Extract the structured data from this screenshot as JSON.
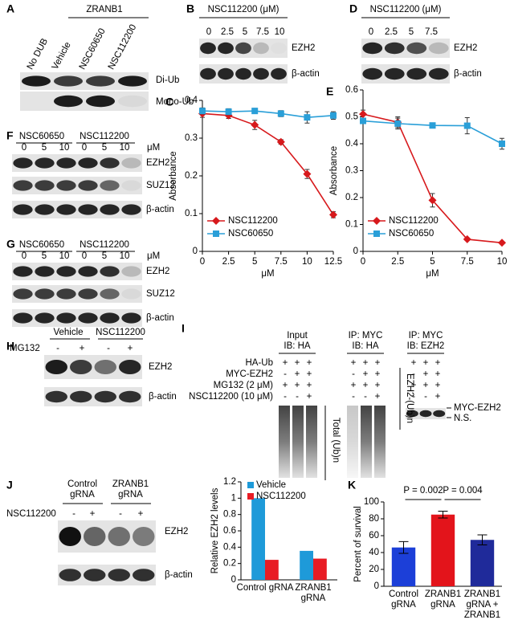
{
  "panels": {
    "A": {
      "label": "A",
      "group": "ZRANB1",
      "lanes": [
        "No DUB",
        "Vehicle",
        "NSC60650",
        "NSC112200"
      ],
      "bands": [
        "Di-Ub",
        "Mono-Ub"
      ]
    },
    "B": {
      "label": "B",
      "header": "NSC112200 (μM)",
      "doses": [
        "0",
        "2.5",
        "5",
        "7.5",
        "10"
      ],
      "bands": [
        "EZH2",
        "β-actin"
      ]
    },
    "D": {
      "label": "D",
      "header": "NSC112200 (μM)",
      "doses": [
        "0",
        "2.5",
        "5",
        "7.5"
      ],
      "bands": [
        "EZH2",
        "β-actin"
      ]
    },
    "F": {
      "label": "F",
      "groups": [
        "NSC60650",
        "NSC112200"
      ],
      "unit": "μM",
      "doses": [
        "0",
        "5",
        "10",
        "0",
        "5",
        "10"
      ],
      "bands": [
        "EZH2",
        "SUZ12",
        "β-actin"
      ]
    },
    "G": {
      "label": "G",
      "groups": [
        "NSC60650",
        "NSC112200"
      ],
      "unit": "μM",
      "doses": [
        "0",
        "5",
        "10",
        "0",
        "5",
        "10"
      ],
      "bands": [
        "EZH2",
        "SUZ12",
        "β-actin"
      ]
    },
    "H": {
      "label": "H",
      "groups": [
        "Vehicle",
        "NSC112200"
      ],
      "row": "MG132",
      "signs": [
        "-",
        "+",
        "-",
        "+"
      ],
      "bands": [
        "EZH2",
        "β-actin"
      ]
    },
    "I": {
      "label": "I",
      "headers": [
        [
          "Input",
          "IB: HA"
        ],
        [
          "IP: MYC",
          "IB: HA"
        ],
        [
          "IP: MYC",
          "IB: EZH2"
        ]
      ],
      "rows": [
        {
          "name": "HA-Ub",
          "signs": [
            "+",
            "+",
            "+",
            "+",
            "+",
            "+",
            "+",
            "+",
            "+"
          ]
        },
        {
          "name": "MYC-EZH2",
          "signs": [
            "-",
            "+",
            "+",
            "-",
            "+",
            "+",
            "-",
            "+",
            "+"
          ]
        },
        {
          "name": "MG132 (2 μM)",
          "signs": [
            "+",
            "+",
            "+",
            "+",
            "+",
            "+",
            "+",
            "+",
            "+"
          ]
        },
        {
          "name": "NSC112200 (10 μM)",
          "signs": [
            "-",
            "-",
            "+",
            "-",
            "-",
            "+",
            "-",
            "-",
            "+"
          ]
        }
      ],
      "side_labels": [
        "Total (Ub)n",
        "EZH2-(Ub)n",
        "MYC-EZH2",
        "N.S."
      ]
    },
    "J": {
      "label": "J",
      "groups": [
        "Control gRNA",
        "ZRANB1 gRNA"
      ],
      "row": "NSC112200",
      "signs": [
        "-",
        "+",
        "-",
        "+"
      ],
      "bands": [
        "EZH2",
        "β-actin"
      ]
    }
  },
  "chart_data": [
    {
      "type": "line",
      "panel": "C",
      "x_label": "μM",
      "y_label": "Absorbance",
      "x": [
        0,
        2.5,
        5,
        7.5,
        10,
        12.5
      ],
      "xlim": [
        0,
        12.5
      ],
      "xticks": [
        0,
        2.5,
        5,
        7.5,
        10,
        12.5
      ],
      "ylim": [
        0,
        0.4
      ],
      "yticks": [
        0,
        0.1,
        0.2,
        0.3,
        0.4
      ],
      "legend": "lower left",
      "series": [
        {
          "name": "NSC112200",
          "color": "#d7191c",
          "marker": "diamond",
          "values": [
            0.365,
            0.36,
            0.335,
            0.29,
            0.205,
            0.097
          ],
          "errors": [
            0.01,
            0.008,
            0.012,
            0.006,
            0.012,
            0.008
          ]
        },
        {
          "name": "NSC60650",
          "color": "#2a9fd8",
          "marker": "square",
          "values": [
            0.372,
            0.37,
            0.372,
            0.365,
            0.355,
            0.36
          ],
          "errors": [
            0.008,
            0.008,
            0.007,
            0.008,
            0.015,
            0.01
          ]
        }
      ]
    },
    {
      "type": "line",
      "panel": "E",
      "x_label": "μM",
      "y_label": "Absorbance",
      "x": [
        0,
        2.5,
        5,
        7.5,
        10
      ],
      "xlim": [
        0,
        10
      ],
      "xticks": [
        0,
        2.5,
        5,
        7.5,
        10
      ],
      "ylim": [
        0,
        0.6
      ],
      "yticks": [
        0,
        0.1,
        0.2,
        0.3,
        0.4,
        0.5,
        0.6
      ],
      "legend": "lower left",
      "series": [
        {
          "name": "NSC112200",
          "color": "#d7191c",
          "marker": "diamond",
          "values": [
            0.51,
            0.48,
            0.19,
            0.045,
            0.032
          ],
          "errors": [
            0.015,
            0.02,
            0.025,
            0.004,
            0.004
          ]
        },
        {
          "name": "NSC60650",
          "color": "#2a9fd8",
          "marker": "square",
          "values": [
            0.485,
            0.475,
            0.468,
            0.467,
            0.4
          ],
          "errors": [
            0.01,
            0.02,
            0.005,
            0.03,
            0.02
          ]
        }
      ]
    },
    {
      "type": "bar",
      "y_label": "Relative EZH2 levels",
      "categories": [
        "Control gRNA",
        "ZRANB1 gRNA"
      ],
      "ylim": [
        0,
        1.2
      ],
      "yticks": [
        0,
        0.2,
        0.4,
        0.6,
        0.8,
        1,
        1.2
      ],
      "legend": "upper left",
      "series": [
        {
          "name": "Vehicle",
          "color": "#1e9ad9",
          "values": [
            1,
            0.355
          ]
        },
        {
          "name": "NSC112200",
          "color": "#e81c24",
          "values": [
            0.245,
            0.26
          ]
        }
      ]
    },
    {
      "type": "bar",
      "panel": "K",
      "y_label": "Percent of survival",
      "categories": [
        "Control gRNA",
        "ZRANB1 gRNA",
        "ZRANB1 gRNA + ZRANB1"
      ],
      "ylim": [
        0,
        100
      ],
      "yticks": [
        0,
        20,
        40,
        60,
        80,
        100
      ],
      "values": [
        46,
        85,
        55
      ],
      "errors": [
        7,
        4,
        6
      ],
      "colors": [
        "#1c3fd8",
        "#e3141b",
        "#1f2a9a"
      ],
      "annotations": [
        "P = 0.002",
        "P = 0.004"
      ]
    }
  ]
}
